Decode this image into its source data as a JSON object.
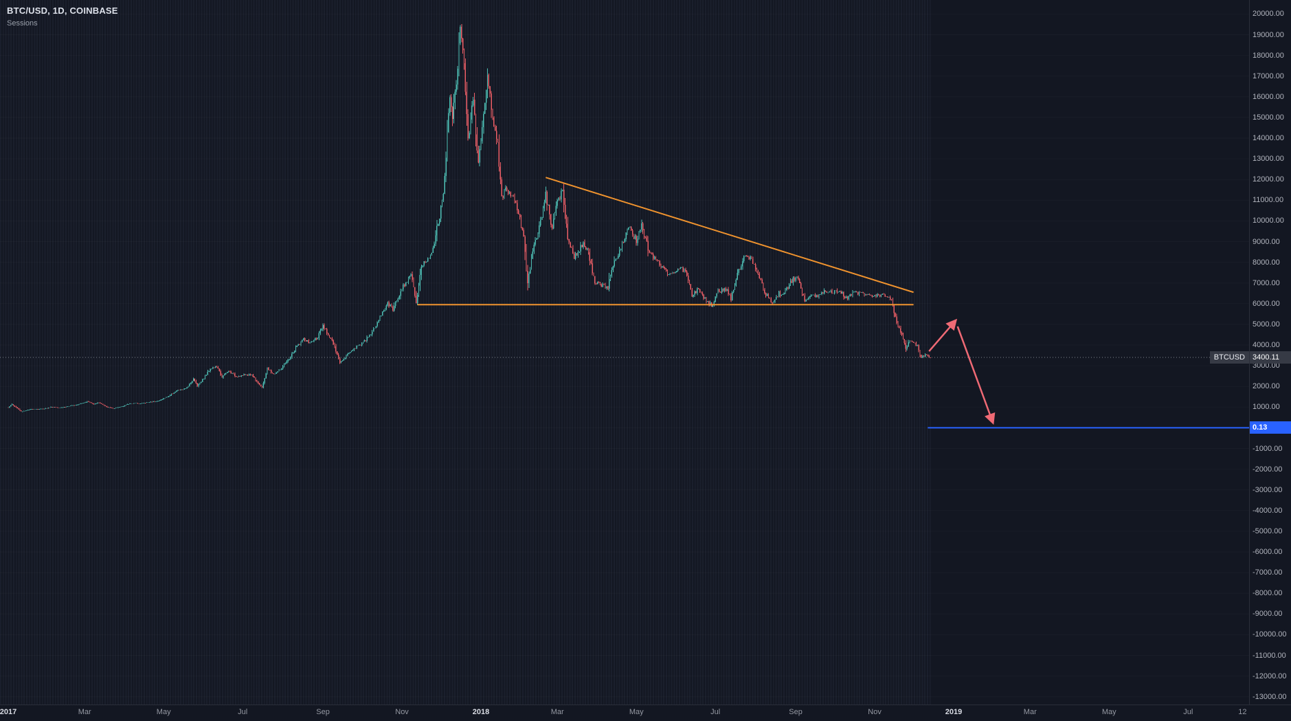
{
  "header": {
    "symbol_title": "BTC/USD, 1D, COINBASE",
    "indicator": "Sessions"
  },
  "price_label": {
    "symbol": "BTCUSD",
    "price": "3400.11"
  },
  "target_label": "0.13",
  "chart_data": {
    "type": "candlestick",
    "symbol": "BTC/USD",
    "interval": "1D",
    "exchange": "COINBASE",
    "last_price": 3400.11,
    "colors": {
      "up": "#4ec0b6",
      "down": "#ef5f67",
      "background": "#131722",
      "axis_text": "#b2b5be",
      "trendline": "#f0932e",
      "arrow": "#ef6a75",
      "target": "#2962ff"
    },
    "y_axis": {
      "min": -13000,
      "max": 20000,
      "step": 1000,
      "tick_labels": [
        "20000.00",
        "19000.00",
        "18000.00",
        "17000.00",
        "16000.00",
        "15000.00",
        "14000.00",
        "13000.00",
        "12000.00",
        "11000.00",
        "10000.00",
        "9000.00",
        "8000.00",
        "7000.00",
        "6000.00",
        "5000.00",
        "4000.00",
        "3000.00",
        "2000.00",
        "1000.00",
        "0.00",
        "-1000.00",
        "-2000.00",
        "-3000.00",
        "-4000.00",
        "-5000.00",
        "-6000.00",
        "-7000.00",
        "-8000.00",
        "-9000.00",
        "-10000.00",
        "-11000.00",
        "-12000.00",
        "-13000.00"
      ]
    },
    "x_axis": {
      "start_date": "2017-01-01",
      "labels": [
        {
          "label": "2017",
          "date": "2017-01-01",
          "year": true
        },
        {
          "label": "Mar",
          "date": "2017-03-01"
        },
        {
          "label": "May",
          "date": "2017-05-01"
        },
        {
          "label": "Jul",
          "date": "2017-07-01"
        },
        {
          "label": "Sep",
          "date": "2017-09-01"
        },
        {
          "label": "Nov",
          "date": "2017-11-01"
        },
        {
          "label": "2018",
          "date": "2018-01-01",
          "year": true
        },
        {
          "label": "Mar",
          "date": "2018-03-01"
        },
        {
          "label": "May",
          "date": "2018-05-01"
        },
        {
          "label": "Jul",
          "date": "2018-07-01"
        },
        {
          "label": "Sep",
          "date": "2018-09-01"
        },
        {
          "label": "Nov",
          "date": "2018-11-01"
        },
        {
          "label": "2019",
          "date": "2019-01-01",
          "year": true
        },
        {
          "label": "Mar",
          "date": "2019-03-01"
        },
        {
          "label": "May",
          "date": "2019-05-01"
        },
        {
          "label": "Jul",
          "date": "2019-07-01"
        },
        {
          "label": "12",
          "date": "2019-08-12"
        }
      ]
    },
    "anchors": [
      [
        "2017-01-01",
        995
      ],
      [
        "2017-01-04",
        1135
      ],
      [
        "2017-01-11",
        790
      ],
      [
        "2017-01-19",
        900
      ],
      [
        "2017-01-28",
        920
      ],
      [
        "2017-02-04",
        1010
      ],
      [
        "2017-02-09",
        985
      ],
      [
        "2017-02-14",
        1010
      ],
      [
        "2017-02-23",
        1120
      ],
      [
        "2017-03-03",
        1275
      ],
      [
        "2017-03-08",
        1150
      ],
      [
        "2017-03-12",
        1230
      ],
      [
        "2017-03-18",
        1000
      ],
      [
        "2017-03-24",
        935
      ],
      [
        "2017-03-30",
        1040
      ],
      [
        "2017-04-06",
        1190
      ],
      [
        "2017-04-13",
        1175
      ],
      [
        "2017-04-20",
        1240
      ],
      [
        "2017-04-27",
        1300
      ],
      [
        "2017-05-04",
        1510
      ],
      [
        "2017-05-11",
        1790
      ],
      [
        "2017-05-18",
        1890
      ],
      [
        "2017-05-24",
        2350
      ],
      [
        "2017-05-27",
        2050
      ],
      [
        "2017-06-01",
        2400
      ],
      [
        "2017-06-06",
        2870
      ],
      [
        "2017-06-11",
        2960
      ],
      [
        "2017-06-15",
        2450
      ],
      [
        "2017-06-20",
        2750
      ],
      [
        "2017-06-26",
        2480
      ],
      [
        "2017-07-02",
        2550
      ],
      [
        "2017-07-08",
        2570
      ],
      [
        "2017-07-16",
        1935
      ],
      [
        "2017-07-20",
        2870
      ],
      [
        "2017-07-25",
        2580
      ],
      [
        "2017-07-31",
        2870
      ],
      [
        "2017-08-05",
        3250
      ],
      [
        "2017-08-12",
        3950
      ],
      [
        "2017-08-17",
        4280
      ],
      [
        "2017-08-22",
        4090
      ],
      [
        "2017-08-28",
        4390
      ],
      [
        "2017-09-01",
        4900
      ],
      [
        "2017-09-08",
        4230
      ],
      [
        "2017-09-14",
        3150
      ],
      [
        "2017-09-21",
        3630
      ],
      [
        "2017-09-27",
        3920
      ],
      [
        "2017-10-04",
        4220
      ],
      [
        "2017-10-11",
        4820
      ],
      [
        "2017-10-17",
        5600
      ],
      [
        "2017-10-21",
        6000
      ],
      [
        "2017-10-25",
        5730
      ],
      [
        "2017-11-01",
        6750
      ],
      [
        "2017-11-08",
        7450
      ],
      [
        "2017-11-12",
        5950
      ],
      [
        "2017-11-16",
        7870
      ],
      [
        "2017-11-21",
        8100
      ],
      [
        "2017-11-25",
        8750
      ],
      [
        "2017-11-29",
        9900
      ],
      [
        "2017-12-03",
        11250
      ],
      [
        "2017-12-06",
        14100
      ],
      [
        "2017-12-08",
        16200
      ],
      [
        "2017-12-10",
        15150
      ],
      [
        "2017-12-13",
        16550
      ],
      [
        "2017-12-16",
        19400
      ],
      [
        "2017-12-19",
        17700
      ],
      [
        "2017-12-22",
        13850
      ],
      [
        "2017-12-26",
        16100
      ],
      [
        "2017-12-30",
        12650
      ],
      [
        "2018-01-03",
        15200
      ],
      [
        "2018-01-06",
        17150
      ],
      [
        "2018-01-10",
        14950
      ],
      [
        "2018-01-14",
        13650
      ],
      [
        "2018-01-17",
        11150
      ],
      [
        "2018-01-21",
        11550
      ],
      [
        "2018-01-26",
        11100
      ],
      [
        "2018-01-31",
        10200
      ],
      [
        "2018-02-03",
        9150
      ],
      [
        "2018-02-06",
        6950
      ],
      [
        "2018-02-10",
        8550
      ],
      [
        "2018-02-14",
        9450
      ],
      [
        "2018-02-18",
        10450
      ],
      [
        "2018-02-20",
        11250
      ],
      [
        "2018-02-25",
        9650
      ],
      [
        "2018-03-01",
        10900
      ],
      [
        "2018-03-05",
        11450
      ],
      [
        "2018-03-09",
        9250
      ],
      [
        "2018-03-14",
        8250
      ],
      [
        "2018-03-21",
        8950
      ],
      [
        "2018-03-25",
        8450
      ],
      [
        "2018-03-30",
        7000
      ],
      [
        "2018-04-04",
        6850
      ],
      [
        "2018-04-09",
        6800
      ],
      [
        "2018-04-13",
        7900
      ],
      [
        "2018-04-20",
        8850
      ],
      [
        "2018-04-25",
        9650
      ],
      [
        "2018-05-01",
        9050
      ],
      [
        "2018-05-05",
        9850
      ],
      [
        "2018-05-11",
        8450
      ],
      [
        "2018-05-17",
        8100
      ],
      [
        "2018-05-23",
        7550
      ],
      [
        "2018-05-29",
        7450
      ],
      [
        "2018-06-03",
        7700
      ],
      [
        "2018-06-08",
        7600
      ],
      [
        "2018-06-13",
        6350
      ],
      [
        "2018-06-18",
        6750
      ],
      [
        "2018-06-24",
        6100
      ],
      [
        "2018-06-29",
        5900
      ],
      [
        "2018-07-03",
        6600
      ],
      [
        "2018-07-09",
        6700
      ],
      [
        "2018-07-13",
        6250
      ],
      [
        "2018-07-18",
        7400
      ],
      [
        "2018-07-24",
        8400
      ],
      [
        "2018-07-29",
        8200
      ],
      [
        "2018-08-03",
        7450
      ],
      [
        "2018-08-08",
        6550
      ],
      [
        "2018-08-14",
        6000
      ],
      [
        "2018-08-19",
        6500
      ],
      [
        "2018-08-23",
        6450
      ],
      [
        "2018-08-28",
        7050
      ],
      [
        "2018-09-02",
        7280
      ],
      [
        "2018-09-05",
        6700
      ],
      [
        "2018-09-08",
        6200
      ],
      [
        "2018-09-13",
        6450
      ],
      [
        "2018-09-18",
        6350
      ],
      [
        "2018-09-24",
        6650
      ],
      [
        "2018-09-29",
        6600
      ],
      [
        "2018-10-05",
        6580
      ],
      [
        "2018-10-11",
        6250
      ],
      [
        "2018-10-16",
        6550
      ],
      [
        "2018-10-22",
        6480
      ],
      [
        "2018-10-29",
        6330
      ],
      [
        "2018-11-04",
        6400
      ],
      [
        "2018-11-09",
        6380
      ],
      [
        "2018-11-14",
        6180
      ],
      [
        "2018-11-16",
        5550
      ],
      [
        "2018-11-19",
        4950
      ],
      [
        "2018-11-23",
        4350
      ],
      [
        "2018-11-25",
        3780
      ],
      [
        "2018-11-28",
        4250
      ],
      [
        "2018-12-01",
        4150
      ],
      [
        "2018-12-04",
        3950
      ],
      [
        "2018-12-07",
        3400
      ],
      [
        "2018-12-10",
        3550
      ],
      [
        "2018-12-14",
        3400.11
      ]
    ],
    "annotations": {
      "descending_trendline": {
        "from": [
          "2018-02-20",
          12100
        ],
        "to": [
          "2018-12-01",
          6550
        ],
        "color": "#f0932e"
      },
      "horizontal_trendline": {
        "from": [
          "2017-11-13",
          5950
        ],
        "to": [
          "2018-12-01",
          5950
        ],
        "color": "#f0932e"
      },
      "prediction_arrows": [
        {
          "from": [
            "2018-12-13",
            3700
          ],
          "to": [
            "2019-01-02",
            5150
          ],
          "color": "#ef6a75"
        },
        {
          "from": [
            "2019-01-04",
            4900
          ],
          "to": [
            "2019-01-31",
            300
          ],
          "color": "#ef6a75"
        }
      ],
      "target_line": {
        "price": 0.13,
        "from_date": "2018-12-12",
        "extend_right": true,
        "color": "#2962ff"
      },
      "current_price_line": {
        "price": 3400.11,
        "style": "dotted"
      }
    }
  }
}
